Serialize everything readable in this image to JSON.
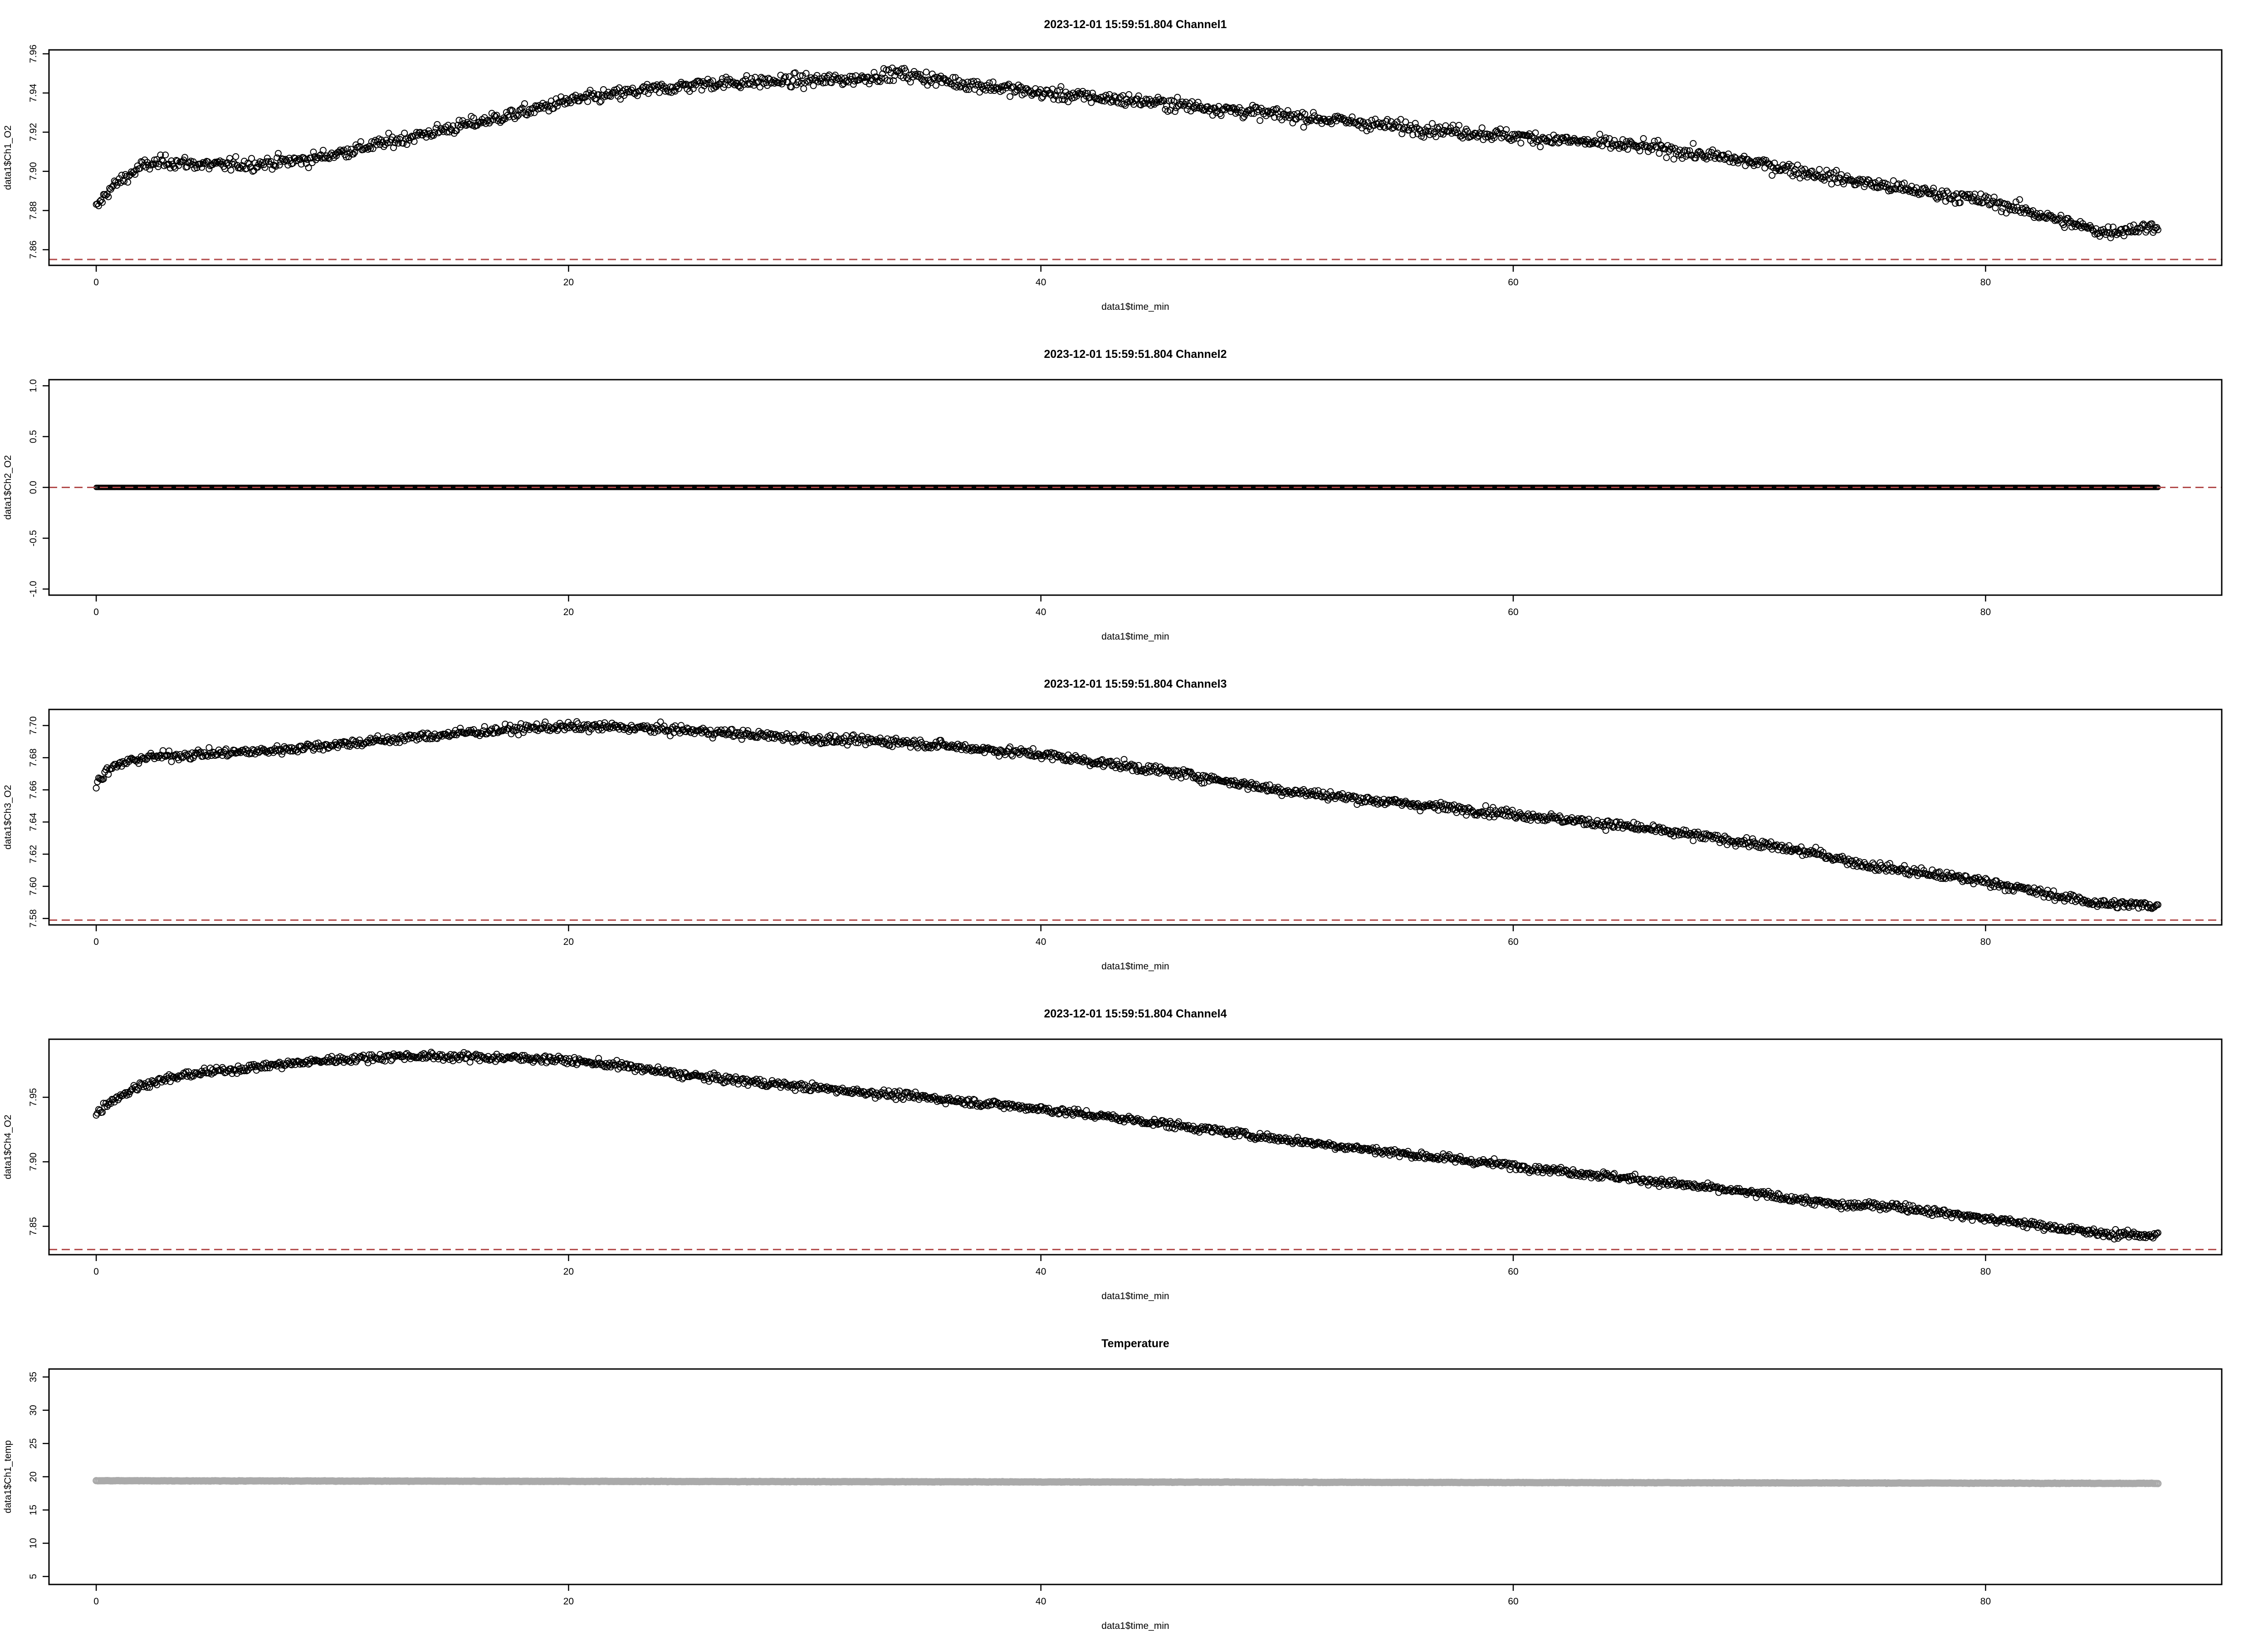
{
  "chart_data": [
    {
      "type": "scatter",
      "title": "2023-12-01 15:59:51.804 Channel1",
      "xlabel": "data1$time_min",
      "ylabel": "data1$Ch1_O2",
      "xlim": [
        -2,
        90
      ],
      "ylim": [
        7.852,
        7.962
      ],
      "xticks": [
        0,
        20,
        40,
        60,
        80
      ],
      "xtick_labels": [
        "0",
        "20",
        "40",
        "60",
        "80"
      ],
      "yticks": [
        7.86,
        7.88,
        7.9,
        7.92,
        7.94,
        7.96
      ],
      "ytick_labels": [
        "7.86",
        "7.88",
        "7.90",
        "7.92",
        "7.94",
        "7.96"
      ],
      "hline": 7.855,
      "hline_color": "#b24a4a",
      "marker": "open-circle",
      "marker_color": "#000000",
      "x_range": [
        0,
        87.3
      ],
      "trend": {
        "x": [
          0,
          0.5,
          1,
          2,
          3,
          5,
          7,
          9,
          12,
          15,
          18,
          20,
          23,
          26,
          29,
          32,
          34,
          36,
          40,
          45,
          50,
          55,
          60,
          63,
          66,
          70,
          74,
          76,
          80,
          82,
          84,
          85,
          87.3
        ],
        "y": [
          7.881,
          7.89,
          7.895,
          7.903,
          7.905,
          7.903,
          7.904,
          7.906,
          7.914,
          7.922,
          7.93,
          7.936,
          7.941,
          7.945,
          7.946,
          7.947,
          7.95,
          7.946,
          7.94,
          7.935,
          7.929,
          7.923,
          7.918,
          7.915,
          7.912,
          7.905,
          7.896,
          7.892,
          7.885,
          7.879,
          7.872,
          7.869,
          7.872
        ]
      },
      "noise_sd": 0.0038
    },
    {
      "type": "scatter",
      "title": "2023-12-01 15:59:51.804 Channel2",
      "xlabel": "data1$time_min",
      "ylabel": "data1$Ch2_O2",
      "xlim": [
        -2,
        90
      ],
      "ylim": [
        -1.06,
        1.06
      ],
      "xticks": [
        0,
        20,
        40,
        60,
        80
      ],
      "xtick_labels": [
        "0",
        "20",
        "40",
        "60",
        "80"
      ],
      "yticks": [
        -1.0,
        -0.5,
        0.0,
        0.5,
        1.0
      ],
      "ytick_labels": [
        "-1.0",
        "-0.5",
        "0.0",
        "0.5",
        "1.0"
      ],
      "hline": 0.0,
      "hline_color": "#b24a4a",
      "marker": "open-circle",
      "marker_color": "#000000",
      "x_range": [
        0,
        87.3
      ],
      "trend": {
        "x": [
          0,
          87.3
        ],
        "y": [
          0,
          0
        ]
      },
      "noise_sd": 0
    },
    {
      "type": "scatter",
      "title": "2023-12-01 15:59:51.804 Channel3",
      "xlabel": "data1$time_min",
      "ylabel": "data1$Ch3_O2",
      "xlim": [
        -2,
        90
      ],
      "ylim": [
        7.576,
        7.71
      ],
      "xticks": [
        0,
        20,
        40,
        60,
        80
      ],
      "xtick_labels": [
        "0",
        "20",
        "40",
        "60",
        "80"
      ],
      "yticks": [
        7.58,
        7.6,
        7.62,
        7.64,
        7.66,
        7.68,
        7.7
      ],
      "ytick_labels": [
        "7.58",
        "7.60",
        "7.62",
        "7.64",
        "7.66",
        "7.68",
        "7.70"
      ],
      "hline": 7.579,
      "hline_color": "#b24a4a",
      "marker": "open-circle",
      "marker_color": "#000000",
      "x_range": [
        0,
        87.3
      ],
      "trend": {
        "x": [
          0,
          0.5,
          1,
          2,
          4,
          7,
          10,
          13,
          16,
          19,
          22,
          25,
          28,
          31,
          34,
          37,
          40,
          43,
          46,
          50,
          55,
          60,
          65,
          70,
          73,
          75,
          80,
          83,
          85,
          87.3
        ],
        "y": [
          7.664,
          7.672,
          7.676,
          7.68,
          7.682,
          7.684,
          7.688,
          7.692,
          7.696,
          7.699,
          7.699,
          7.697,
          7.694,
          7.691,
          7.69,
          7.686,
          7.682,
          7.676,
          7.67,
          7.66,
          7.652,
          7.645,
          7.637,
          7.627,
          7.62,
          7.613,
          7.603,
          7.594,
          7.589,
          7.588
        ]
      },
      "noise_sd": 0.0033
    },
    {
      "type": "scatter",
      "title": "2023-12-01 15:59:51.804 Channel4",
      "xlabel": "data1$time_min",
      "ylabel": "data1$Ch4_O2",
      "xlim": [
        -2,
        90
      ],
      "ylim": [
        7.828,
        7.995
      ],
      "xticks": [
        0,
        20,
        40,
        60,
        80
      ],
      "xtick_labels": [
        "0",
        "20",
        "40",
        "60",
        "80"
      ],
      "yticks": [
        7.85,
        7.9,
        7.95
      ],
      "ytick_labels": [
        "7.85",
        "7.90",
        "7.95"
      ],
      "hline": 7.832,
      "hline_color": "#b24a4a",
      "marker": "open-circle",
      "marker_color": "#000000",
      "x_range": [
        0,
        87.3
      ],
      "trend": {
        "x": [
          0,
          0.5,
          1,
          2,
          4,
          7,
          10,
          13,
          16,
          19,
          22,
          25,
          30,
          35,
          40,
          45,
          50,
          55,
          60,
          65,
          70,
          74,
          76,
          80,
          83,
          85,
          87.3
        ],
        "y": [
          7.937,
          7.946,
          7.951,
          7.96,
          7.968,
          7.974,
          7.979,
          7.982,
          7.981,
          7.98,
          7.975,
          7.967,
          7.958,
          7.95,
          7.941,
          7.93,
          7.918,
          7.907,
          7.897,
          7.887,
          7.876,
          7.866,
          7.866,
          7.856,
          7.849,
          7.844,
          7.843
        ]
      },
      "noise_sd": 0.0035
    },
    {
      "type": "scatter",
      "title": "Temperature",
      "xlabel": "data1$time_min",
      "ylabel": "data1$Ch1_temp",
      "xlim": [
        -2,
        90
      ],
      "ylim": [
        3.8,
        36.2
      ],
      "xticks": [
        0,
        20,
        40,
        60,
        80
      ],
      "xtick_labels": [
        "0",
        "20",
        "40",
        "60",
        "80"
      ],
      "yticks": [
        5,
        10,
        15,
        20,
        25,
        30,
        35
      ],
      "ytick_labels": [
        "5",
        "10",
        "15",
        "20",
        "25",
        "30",
        "35"
      ],
      "hline": null,
      "marker": "open-circle",
      "marker_color": "#aaaaaa",
      "x_range": [
        0,
        87.3
      ],
      "trend": {
        "x": [
          0,
          87.3
        ],
        "y": [
          19.4,
          19.0
        ]
      },
      "noise_sd": 0.04
    }
  ]
}
